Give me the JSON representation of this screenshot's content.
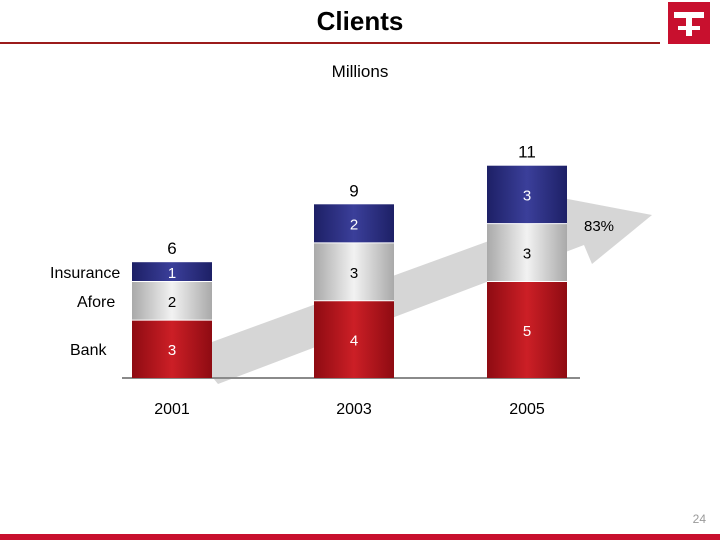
{
  "slide": {
    "title": "Clients",
    "subtitle": "Millions",
    "page_number": "24",
    "brand_color": "#c8102e"
  },
  "chart_data": {
    "type": "bar",
    "stacked": true,
    "categories": [
      "2001",
      "2003",
      "2005"
    ],
    "series": [
      {
        "name": "Bank",
        "values": [
          3,
          4,
          5
        ],
        "color": "#b5121b"
      },
      {
        "name": "Afore",
        "values": [
          2,
          3,
          3
        ],
        "color": "#d4d4d4"
      },
      {
        "name": "Insurance",
        "values": [
          1,
          2,
          3
        ],
        "color": "#2b2f7e"
      }
    ],
    "totals": [
      "6",
      "9",
      "11"
    ],
    "growth_label": "83%",
    "ylim": [
      0,
      11
    ]
  }
}
